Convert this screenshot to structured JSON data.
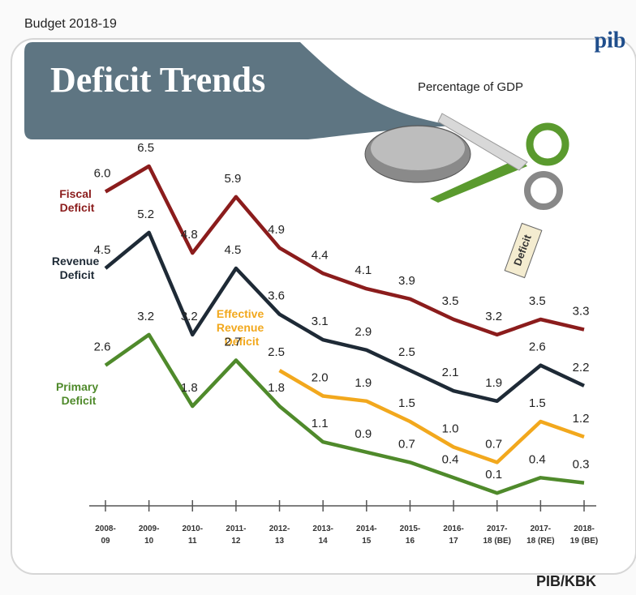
{
  "header": "Budget 2018-19",
  "logo": "pib",
  "footer": "PIB/KBK",
  "illustration_tag": "Deficit",
  "chart_data": {
    "type": "line",
    "title": "Deficit Trends",
    "subtitle": "Percentage of GDP",
    "categories": [
      "2008-09",
      "2009-10",
      "2010-11",
      "2011-12",
      "2012-13",
      "2013-14",
      "2014-15",
      "2015-16",
      "2016-17",
      "2017-18 (BE)",
      "2017-18 (RE)",
      "2018-19 (BE)"
    ],
    "ylim": [
      0,
      7
    ],
    "series": [
      {
        "name": "Fiscal Deficit",
        "color": "#8b1c1c",
        "values": [
          6.0,
          6.5,
          4.8,
          5.9,
          4.9,
          4.4,
          4.1,
          3.9,
          3.5,
          3.2,
          3.5,
          3.3
        ],
        "value_labels": [
          "6.0",
          "6.5",
          "4.8",
          "5.9",
          "4.9",
          "4.4",
          "4.1",
          "3.9",
          "3.5",
          "3.2",
          "3.5",
          "3.3"
        ]
      },
      {
        "name": "Revenue Deficit",
        "color": "#1e2a36",
        "values": [
          4.5,
          5.2,
          3.2,
          4.5,
          3.6,
          3.1,
          2.9,
          2.5,
          2.1,
          1.9,
          2.6,
          2.2
        ]
      },
      {
        "name": "Effective Revenue Deficit",
        "color": "#f2a81d",
        "values": [
          null,
          null,
          null,
          null,
          2.5,
          2.0,
          1.9,
          1.5,
          1.0,
          0.7,
          1.5,
          1.2
        ],
        "value_labels": [
          null,
          null,
          null,
          null,
          "2.5",
          "2.0",
          "1.9",
          "1.5",
          "1.0",
          "0.7",
          "1.5",
          "1.2"
        ]
      },
      {
        "name": "Primary Deficit",
        "color": "#4f8a2b",
        "values": [
          2.6,
          3.2,
          1.8,
          2.7,
          1.8,
          1.1,
          0.9,
          0.7,
          0.4,
          0.1,
          0.4,
          0.3
        ]
      }
    ]
  }
}
